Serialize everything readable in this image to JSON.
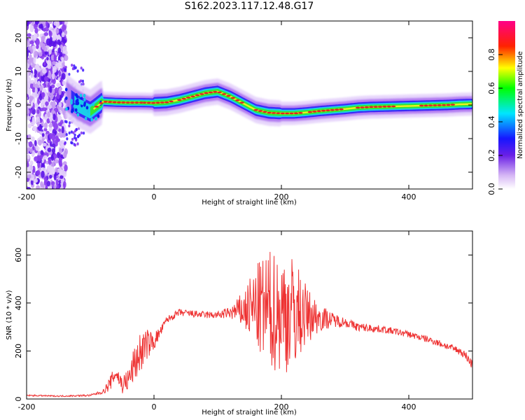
{
  "title": "S162.2023.117.12.48.G17",
  "chart_data": [
    {
      "type": "heatmap",
      "xlabel": "Height of straight line (km)",
      "ylabel": "Frequency (Hz)",
      "xlim": [
        -200,
        500
      ],
      "ylim": [
        -25,
        25
      ],
      "xticks": [
        -200,
        0,
        200,
        400
      ],
      "yticks": [
        -20,
        -10,
        0,
        10,
        20
      ],
      "colorbar": {
        "label": "Normalized spectral amplitude",
        "range": [
          0,
          1
        ],
        "ticks": [
          0.0,
          0.2,
          0.4,
          0.6,
          0.8
        ],
        "tick_labels": [
          "0.0",
          "0.2",
          "0.4",
          "0.6",
          "0.8"
        ]
      },
      "ridge_frequency_hz": {
        "x": [
          -140,
          -120,
          -100,
          -80,
          -60,
          -40,
          -20,
          0,
          20,
          40,
          60,
          80,
          100,
          120,
          140,
          160,
          180,
          200,
          220,
          240,
          260,
          280,
          300,
          320,
          340,
          360,
          380,
          400,
          420,
          440,
          460,
          480,
          500
        ],
        "y": [
          3,
          0,
          -2,
          1,
          0.8,
          0.7,
          0.7,
          0.6,
          0.8,
          1.5,
          2.5,
          3.5,
          4,
          2.5,
          0.5,
          -1.5,
          -2.3,
          -2.5,
          -2.5,
          -2.2,
          -1.8,
          -1.5,
          -1.2,
          -0.8,
          -0.6,
          -0.5,
          -0.4,
          -0.3,
          -0.2,
          -0.1,
          0,
          0.2,
          0.3
        ]
      }
    },
    {
      "type": "line",
      "xlabel": "Height of straight line (km)",
      "ylabel": "SNR (10 * v/v)",
      "xlim": [
        -200,
        500
      ],
      "ylim": [
        0,
        700
      ],
      "xticks": [
        -200,
        0,
        200,
        400
      ],
      "yticks": [
        0,
        200,
        400,
        600
      ],
      "color": "#ee3333",
      "x": [
        -200,
        -150,
        -100,
        -80,
        -70,
        -60,
        -50,
        -40,
        -30,
        -20,
        -10,
        0,
        10,
        20,
        40,
        60,
        80,
        100,
        120,
        140,
        160,
        180,
        200,
        220,
        240,
        260,
        280,
        300,
        320,
        340,
        360,
        380,
        400,
        420,
        440,
        460,
        480,
        490,
        500
      ],
      "y": [
        15,
        12,
        15,
        30,
        60,
        110,
        60,
        80,
        150,
        200,
        230,
        240,
        280,
        330,
        360,
        355,
        350,
        350,
        360,
        370,
        380,
        370,
        360,
        360,
        350,
        340,
        330,
        320,
        300,
        295,
        290,
        280,
        270,
        255,
        240,
        220,
        200,
        180,
        140
      ],
      "oscillation_amplitude": [
        3,
        3,
        4,
        8,
        30,
        35,
        40,
        50,
        80,
        90,
        60,
        40,
        20,
        15,
        15,
        15,
        15,
        15,
        25,
        80,
        180,
        250,
        260,
        240,
        120,
        60,
        30,
        20,
        18,
        16,
        15,
        14,
        14,
        14,
        14,
        15,
        16,
        18,
        20
      ]
    }
  ]
}
